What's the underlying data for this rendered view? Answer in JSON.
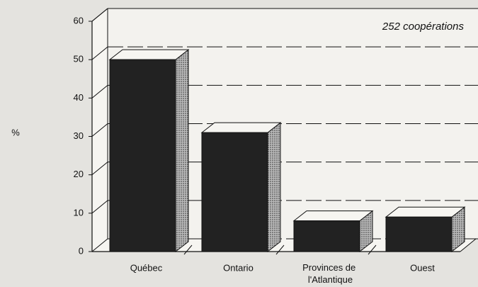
{
  "chart_data": {
    "type": "bar3d",
    "annotation": "252 coopérations",
    "y_label": "%",
    "categories": [
      "Québec",
      "Ontario",
      "Provinces de l'Atlantique",
      "Ouest"
    ],
    "values": [
      50,
      31,
      8,
      9
    ],
    "color": "#222222",
    "ylim": [
      0,
      60
    ],
    "yticks": [
      0,
      10,
      20,
      30,
      40,
      50,
      60
    ],
    "grid": true
  }
}
